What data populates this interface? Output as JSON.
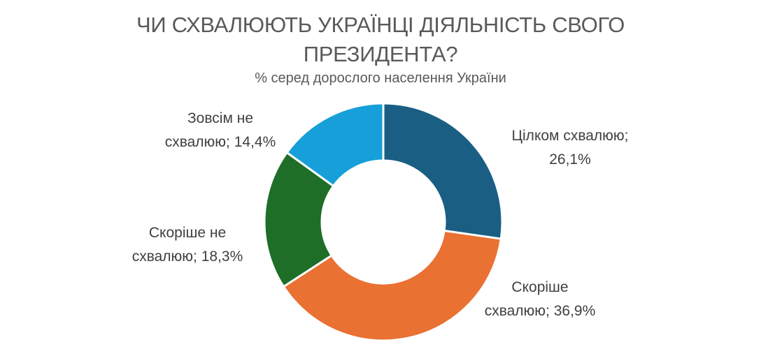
{
  "chart_data": {
    "type": "pie",
    "subtype": "donut",
    "title": "ЧИ СХВАЛЮЮТЬ УКРАЇНЦІ ДІЯЛЬНІСТЬ СВОГО ПРЕЗИДЕНТА?",
    "title_lines": [
      "ЧИ СХВАЛЮЮТЬ УКРАЇНЦІ ДІЯЛЬНІСТЬ СВОГО",
      "ПРЕЗИДЕНТА?"
    ],
    "subtitle": "% серед дорослого населення України",
    "categories": [
      "Цілком схвалюю",
      "Скоріше схвалюю",
      "Скоріше не схвалюю",
      "Зовсім не схвалюю"
    ],
    "values": [
      26.1,
      36.9,
      18.3,
      14.4
    ],
    "unit": "%",
    "colors": [
      "#1b5e84",
      "#e97132",
      "#1e6e28",
      "#169fd8"
    ],
    "labels": [
      {
        "line1": "Цілком схвалюю;",
        "line2": "26,1%"
      },
      {
        "line1": "Скоріше",
        "line2": "схвалюю; 36,9%"
      },
      {
        "line1": "Скоріше не",
        "line2": "схвалюю; 18,3%"
      },
      {
        "line1": "Зовсім не",
        "line2": "схвалюю; 14,4%"
      }
    ],
    "legend": "none (data labels outside slices)",
    "start_angle": "12 o'clock, clockwise"
  }
}
